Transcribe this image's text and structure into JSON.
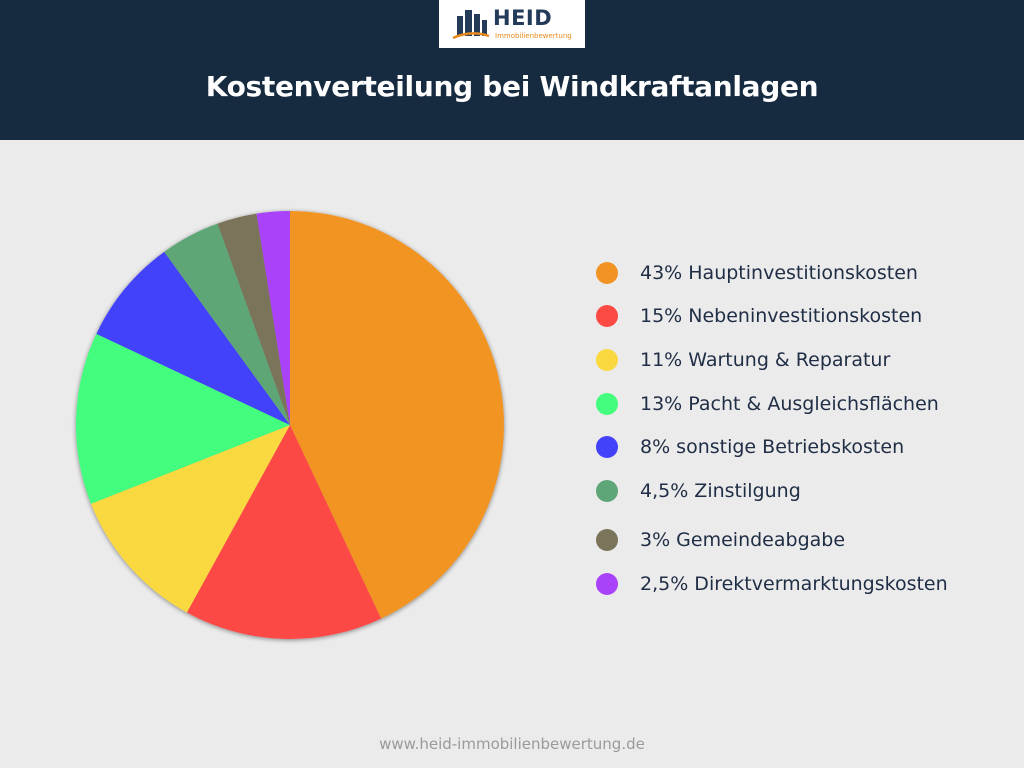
{
  "brand": {
    "name": "HEID",
    "tagline": "Immobilienbewertung",
    "accent": "#e88a1c",
    "navy": "#243a59"
  },
  "header": {
    "title": "Kostenverteilung bei Windkraftanlagen",
    "background": "#162a40"
  },
  "chart_data": {
    "type": "pie",
    "title": "Kostenverteilung bei Windkraftanlagen",
    "legend_placement": "right",
    "slices": [
      {
        "label": "43% Hauptinvestitionskosten",
        "value": 43,
        "color": "#f29423"
      },
      {
        "label": "15% Nebeninvestitionskosten",
        "value": 15,
        "color": "#fd4a44"
      },
      {
        "label": "11% Wartung & Reparatur",
        "value": 11,
        "color": "#fad940"
      },
      {
        "label": "13% Pacht & Ausgleichsflächen",
        "value": 13,
        "color": "#43fd7e"
      },
      {
        "label": "8% sonstige Betriebskosten",
        "value": 8,
        "color": "#4242fb"
      },
      {
        "label": "4,5% Zinstilgung",
        "value": 4.5,
        "color": "#5ea677"
      },
      {
        "label": "3% Gemeindeabgabe",
        "value": 3,
        "color": "#7a745a"
      },
      {
        "label": "2,5% Direktvermarktungskosten",
        "value": 2.5,
        "color": "#a943f9"
      }
    ]
  },
  "footer": {
    "url": "www.heid-immobilienbewertung.de"
  }
}
